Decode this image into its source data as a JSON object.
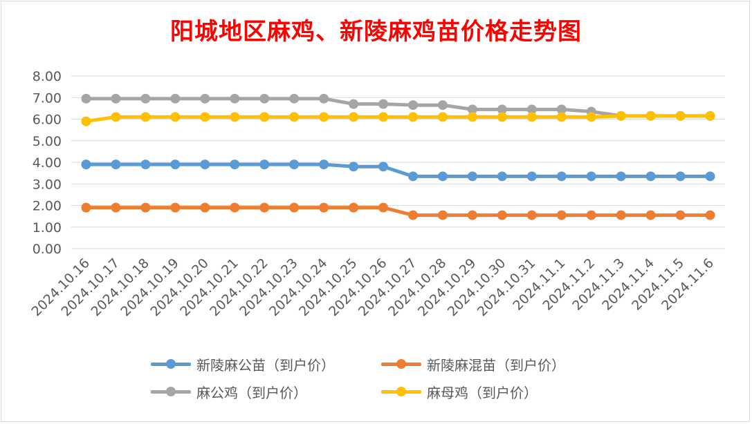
{
  "chart_data": {
    "type": "line",
    "title": "阳城地区麻鸡、新陵麻鸡苗价格走势图",
    "categories": [
      "2024.10.16",
      "2024.10.17",
      "2024.10.18",
      "2024.10.19",
      "2024.10.20",
      "2024.10.21",
      "2024.10.22",
      "2024.10.23",
      "2024.10.24",
      "2024.10.25",
      "2024.10.26",
      "2024.10.27",
      "2024.10.28",
      "2024.10.29",
      "2024.10.30",
      "2024.10.31",
      "2024.11.1",
      "2024.11.2",
      "2024.11.3",
      "2024.11.4",
      "2024.11.5",
      "2024.11.6"
    ],
    "ylim": [
      0,
      8
    ],
    "yticks": [
      "0.00",
      "1.00",
      "2.00",
      "3.00",
      "4.00",
      "5.00",
      "6.00",
      "7.00",
      "8.00"
    ],
    "grid": true,
    "legend_position": "bottom",
    "series": [
      {
        "name": "新陵麻公苗（到户价）",
        "color": "#5b9bd5",
        "values": [
          3.9,
          3.9,
          3.9,
          3.9,
          3.9,
          3.9,
          3.9,
          3.9,
          3.9,
          3.8,
          3.8,
          3.35,
          3.35,
          3.35,
          3.35,
          3.35,
          3.35,
          3.35,
          3.35,
          3.35,
          3.35,
          3.35
        ]
      },
      {
        "name": "新陵麻混苗（到户价）",
        "color": "#ed7d31",
        "values": [
          1.9,
          1.9,
          1.9,
          1.9,
          1.9,
          1.9,
          1.9,
          1.9,
          1.9,
          1.9,
          1.9,
          1.55,
          1.55,
          1.55,
          1.55,
          1.55,
          1.55,
          1.55,
          1.55,
          1.55,
          1.55,
          1.55
        ]
      },
      {
        "name": "麻公鸡（到户价）",
        "color": "#a5a5a5",
        "values": [
          6.95,
          6.95,
          6.95,
          6.95,
          6.95,
          6.95,
          6.95,
          6.95,
          6.95,
          6.7,
          6.7,
          6.65,
          6.65,
          6.45,
          6.45,
          6.45,
          6.45,
          6.35,
          6.15,
          6.15,
          6.15,
          6.15
        ]
      },
      {
        "name": "麻母鸡（到户价）",
        "color": "#ffc000",
        "values": [
          5.9,
          6.1,
          6.1,
          6.1,
          6.1,
          6.1,
          6.1,
          6.1,
          6.1,
          6.1,
          6.1,
          6.1,
          6.1,
          6.1,
          6.1,
          6.1,
          6.1,
          6.1,
          6.15,
          6.15,
          6.15,
          6.15
        ]
      }
    ]
  }
}
